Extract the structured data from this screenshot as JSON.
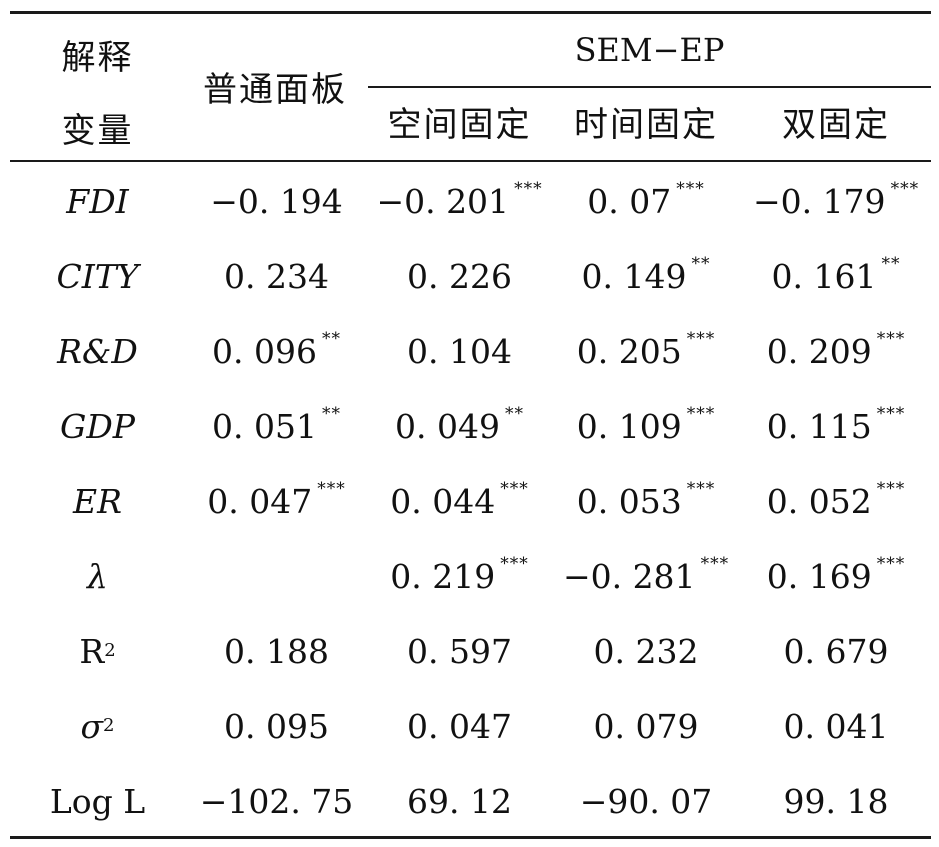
{
  "table": {
    "header": {
      "var_line1": "解释",
      "var_line2": "变量",
      "panel": "普通面板",
      "group": "SEM−EP",
      "sub": [
        "空间固定",
        "时间固定",
        "双固定"
      ]
    },
    "rows": [
      {
        "label": "FDI",
        "style": "italic",
        "cells": [
          {
            "v": "−0. 194",
            "s": ""
          },
          {
            "v": "−0. 201",
            "s": "***"
          },
          {
            "v": "0. 07",
            "s": "***"
          },
          {
            "v": "−0. 179",
            "s": "***"
          }
        ]
      },
      {
        "label": "CITY",
        "style": "italic",
        "cells": [
          {
            "v": "0. 234",
            "s": ""
          },
          {
            "v": "0. 226",
            "s": ""
          },
          {
            "v": "0. 149",
            "s": "**"
          },
          {
            "v": "0. 161",
            "s": "**"
          }
        ]
      },
      {
        "label": "R&D",
        "style": "italic",
        "cells": [
          {
            "v": "0. 096",
            "s": "**"
          },
          {
            "v": "0. 104",
            "s": ""
          },
          {
            "v": "0. 205",
            "s": "***"
          },
          {
            "v": "0. 209",
            "s": "***"
          }
        ]
      },
      {
        "label": "GDP",
        "style": "italic",
        "cells": [
          {
            "v": "0. 051",
            "s": "**"
          },
          {
            "v": "0. 049",
            "s": "**"
          },
          {
            "v": "0. 109",
            "s": "***"
          },
          {
            "v": "0. 115",
            "s": "***"
          }
        ]
      },
      {
        "label": "ER",
        "style": "italic",
        "cells": [
          {
            "v": "0. 047",
            "s": "***"
          },
          {
            "v": "0. 044",
            "s": "***"
          },
          {
            "v": "0. 053",
            "s": "***"
          },
          {
            "v": "0. 052",
            "s": "***"
          }
        ]
      },
      {
        "label": "λ",
        "style": "italic",
        "cells": [
          {
            "v": "",
            "s": ""
          },
          {
            "v": "0. 219",
            "s": "***"
          },
          {
            "v": "−0. 281",
            "s": "***"
          },
          {
            "v": "0. 169",
            "s": "***"
          }
        ]
      },
      {
        "label": "R",
        "sup": "2",
        "style": "plain",
        "cells": [
          {
            "v": "0. 188",
            "s": ""
          },
          {
            "v": "0. 597",
            "s": ""
          },
          {
            "v": "0. 232",
            "s": ""
          },
          {
            "v": "0. 679",
            "s": ""
          }
        ]
      },
      {
        "label": "σ",
        "sup": "2",
        "style": "italic",
        "cells": [
          {
            "v": "0. 095",
            "s": ""
          },
          {
            "v": "0. 047",
            "s": ""
          },
          {
            "v": "0. 079",
            "s": ""
          },
          {
            "v": "0. 041",
            "s": ""
          }
        ]
      },
      {
        "label": "Log L",
        "style": "plain",
        "cells": [
          {
            "v": "−102. 75",
            "s": ""
          },
          {
            "v": "69. 12",
            "s": ""
          },
          {
            "v": "−90. 07",
            "s": ""
          },
          {
            "v": "99. 18",
            "s": ""
          }
        ]
      }
    ]
  }
}
